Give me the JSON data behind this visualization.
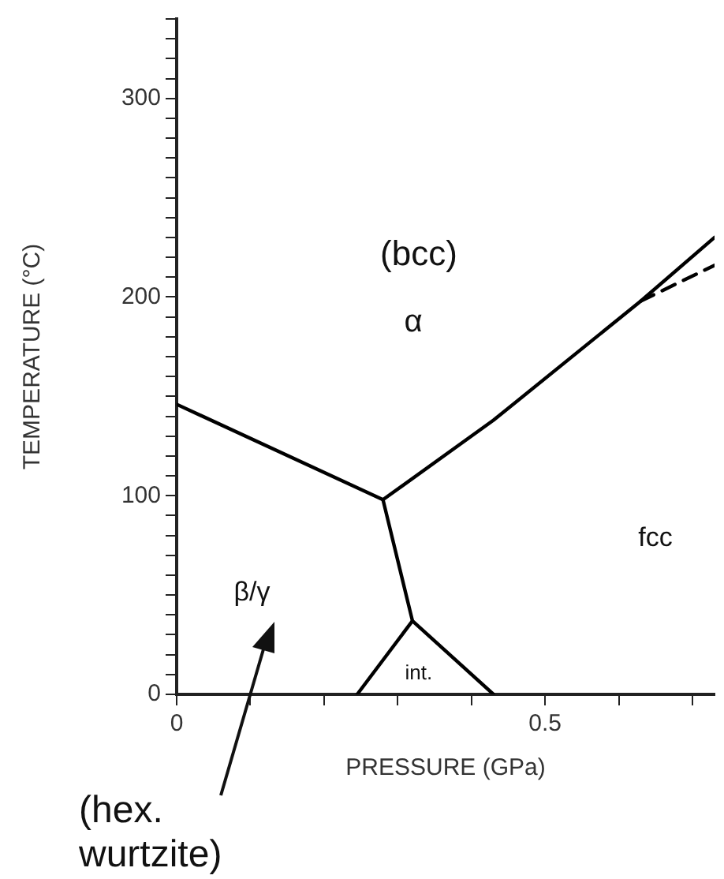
{
  "chart_data": {
    "type": "line",
    "xlabel": "PRESSURE (GPa)",
    "ylabel": "TEMPERATURE (°C)",
    "xlim": [
      0,
      0.73
    ],
    "ylim": [
      0,
      340
    ],
    "xticks": [
      0,
      {
        "value": 0.1,
        "label": null
      },
      {
        "value": 0.2,
        "label": null
      },
      {
        "value": 0.3,
        "label": null
      },
      {
        "value": 0.4,
        "label": null
      },
      0.5,
      {
        "value": 0.6,
        "label": null
      },
      {
        "value": 0.7,
        "label": null
      }
    ],
    "yticks": [
      0,
      {
        "value": 10,
        "label": null
      },
      {
        "value": 20,
        "label": null
      },
      {
        "value": 30,
        "label": null
      },
      {
        "value": 40,
        "label": null
      },
      {
        "value": 50,
        "label": null
      },
      {
        "value": 60,
        "label": null
      },
      {
        "value": 70,
        "label": null
      },
      {
        "value": 80,
        "label": null
      },
      {
        "value": 90,
        "label": null
      },
      100,
      {
        "value": 110,
        "label": null
      },
      {
        "value": 120,
        "label": null
      },
      {
        "value": 130,
        "label": null
      },
      {
        "value": 140,
        "label": null
      },
      {
        "value": 150,
        "label": null
      },
      {
        "value": 160,
        "label": null
      },
      {
        "value": 170,
        "label": null
      },
      {
        "value": 180,
        "label": null
      },
      {
        "value": 190,
        "label": null
      },
      200,
      {
        "value": 210,
        "label": null
      },
      {
        "value": 220,
        "label": null
      },
      {
        "value": 230,
        "label": null
      },
      {
        "value": 240,
        "label": null
      },
      {
        "value": 250,
        "label": null
      },
      {
        "value": 260,
        "label": null
      },
      {
        "value": 270,
        "label": null
      },
      {
        "value": 280,
        "label": null
      },
      {
        "value": 290,
        "label": null
      },
      300,
      {
        "value": 310,
        "label": null
      },
      {
        "value": 320,
        "label": null
      },
      {
        "value": 330,
        "label": null
      },
      {
        "value": 340,
        "label": null
      }
    ],
    "marker": "none",
    "line_style": "solid",
    "legend": false,
    "series": [
      {
        "color": "#000000",
        "x": [
          0,
          0.28
        ],
        "values": [
          146,
          98
        ]
      },
      {
        "color": "#000000",
        "x": [
          0.28,
          0.32
        ],
        "values": [
          98,
          37
        ]
      },
      {
        "color": "#000000",
        "x": [
          0.245,
          0.32,
          0.43
        ],
        "values": [
          0,
          37,
          0
        ]
      },
      {
        "color": "#000000",
        "x": [
          0.28,
          0.43,
          0.63,
          0.73
        ],
        "values": [
          98,
          138,
          198,
          230
        ]
      },
      {
        "color": "#000000",
        "x": [
          0.63,
          0.73
        ],
        "values": [
          198,
          216
        ],
        "line_style": "dashed"
      }
    ],
    "annotations": [
      "(bcc)",
      "α",
      "fcc",
      "β/γ",
      "int.",
      "(hex. wurtzite)"
    ]
  }
}
